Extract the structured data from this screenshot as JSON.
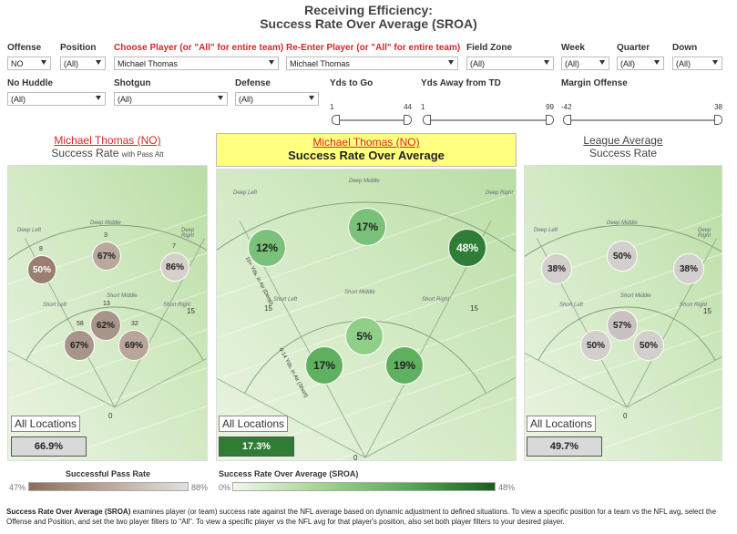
{
  "title": {
    "line1": "Receiving Efficiency:",
    "line2": "Success Rate Over Average (SROA)"
  },
  "filters": {
    "offense": {
      "label": "Offense",
      "value": "NO"
    },
    "position": {
      "label": "Position",
      "value": "(All)"
    },
    "choose_player": {
      "label": "Choose Player (or \"All\" for entire team)",
      "value": "Michael Thomas"
    },
    "reenter_player": {
      "label": "Re-Enter Player (or \"All\" for entire team)",
      "value": "Michael Thomas"
    },
    "field_zone": {
      "label": "Field Zone",
      "value": "(All)"
    },
    "week": {
      "label": "Week",
      "value": "(All)"
    },
    "quarter": {
      "label": "Quarter",
      "value": "(All)"
    },
    "down": {
      "label": "Down",
      "value": "(All)"
    },
    "no_huddle": {
      "label": "No Huddle",
      "value": "(All)"
    },
    "shotgun": {
      "label": "Shotgun",
      "value": "(All)"
    },
    "defense": {
      "label": "Defense",
      "value": "(All)"
    },
    "yds_to_go": {
      "label": "Yds to Go",
      "min": "1",
      "max": "44"
    },
    "yds_away": {
      "label": "Yds Away from TD",
      "min": "1",
      "max": "99"
    },
    "margin": {
      "label": "Margin Offense",
      "min": "-42",
      "max": "38"
    }
  },
  "left_panel": {
    "name": "Michael Thomas (NO)",
    "subtitle": "Success Rate",
    "subtitle_small": "with Pass Att",
    "zones": [
      "Deep Left",
      "Deep Middle",
      "Deep Right",
      "Short Left",
      "Short Middle",
      "Short Right"
    ],
    "bubbles": [
      {
        "label": "50%",
        "count": "8"
      },
      {
        "label": "67%",
        "count": "3"
      },
      {
        "label": "86%",
        "count": "7"
      },
      {
        "label": "62%",
        "count": "13"
      },
      {
        "label": "67%",
        "count": "58"
      },
      {
        "label": "69%",
        "count": "32"
      }
    ],
    "field_nums": [
      "15",
      "0"
    ],
    "all_locations_label": "All Locations",
    "all_locations_value": "66.9%"
  },
  "center_panel": {
    "name": "Michael Thomas (NO)",
    "subtitle": "Success Rate Over Average",
    "zones": [
      "Deep Left",
      "Deep Middle",
      "Deep Right",
      "Short Left",
      "Short Middle",
      "Short Right"
    ],
    "side_text": [
      "15+ Yds. in Air (Deep)",
      "0-14 Yds. in Air (Short)"
    ],
    "bubbles": [
      {
        "label": "12%"
      },
      {
        "label": "17%"
      },
      {
        "label": "48%"
      },
      {
        "label": "5%"
      },
      {
        "label": "17%"
      },
      {
        "label": "19%"
      }
    ],
    "field_nums": [
      "15",
      "15",
      "0"
    ],
    "all_locations_label": "All Locations",
    "all_locations_value": "17.3%"
  },
  "right_panel": {
    "name": "League Average",
    "subtitle": "Success Rate",
    "zones": [
      "Deep Left",
      "Deep Middle",
      "Deep Right",
      "Short Left",
      "Short Middle",
      "Short Right"
    ],
    "bubbles": [
      {
        "label": "38%"
      },
      {
        "label": "50%"
      },
      {
        "label": "38%"
      },
      {
        "label": "57%"
      },
      {
        "label": "50%"
      },
      {
        "label": "50%"
      }
    ],
    "field_nums": [
      "15",
      "0"
    ],
    "all_locations_label": "All Locations",
    "all_locations_value": "49.7%"
  },
  "legend_left": {
    "title": "Successful Pass Rate",
    "min": "47%",
    "max": "88%"
  },
  "legend_right": {
    "title": "Success Rate Over Average (SROA)",
    "min": "0%",
    "max": "48%"
  },
  "footer": {
    "bold": "Success Rate Over Average (SROA)",
    "text": " examines player (or team) success rate against the NFL average based on dynamic adjustment to defined situations. To view a specific position for a team vs the NFL avg, select the Offense and Position, and set the two player filters to \"All\". To view a specific player vs the NFL avg for that player's position, also set both player filters to your desired player."
  },
  "colors": {
    "title_red": "#d62728",
    "highlight": "#ffff80",
    "sroa_fill": "#2e7d32",
    "field_green": "#c8e6b0"
  }
}
